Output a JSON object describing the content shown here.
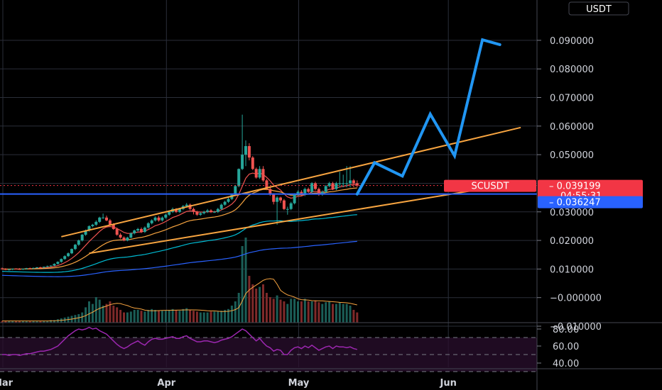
{
  "chart_data": {
    "type": "candlestick",
    "symbol_tag": "SCUSDT",
    "currency_label": "USDT",
    "price_axis": {
      "ticks": [
        "0.080000",
        "0.070000",
        "0.060000",
        "0.050000",
        "0.030000",
        "0.020000",
        "0.010000",
        "−0.000000",
        "−0.010000"
      ],
      "tick_values": [
        0.08,
        0.07,
        0.06,
        0.05,
        0.03,
        0.02,
        0.01,
        0.0,
        -0.01
      ],
      "top_clipped_label": "0.090000",
      "ylim": [
        -0.0165,
        0.0915
      ]
    },
    "rsi_axis": {
      "ticks": [
        "80.00",
        "60.00",
        "40.00"
      ],
      "tick_values": [
        80,
        60,
        40
      ],
      "ylim": [
        35,
        85
      ],
      "band": [
        30,
        70
      ]
    },
    "x_axis": {
      "labels": [
        "Mar",
        "Apr",
        "May",
        "Jun"
      ],
      "label_bar_index": [
        0,
        47,
        85,
        128
      ],
      "total_bars": 140
    },
    "last_price": {
      "label": "0.039199",
      "value": 0.039199,
      "countdown": "04:55:31",
      "color": "#f23645"
    },
    "level_line": {
      "label": "0.036247",
      "value": 0.036247,
      "color": "#2962ff"
    },
    "colors": {
      "up": "#26a69a",
      "down": "#ef5350",
      "channel": "#f7a440",
      "projection": "#2196f3",
      "rsi": "#9c27b0"
    },
    "series": [
      {
        "name": "Open",
        "values": [
          0.0102,
          0.01,
          0.0098,
          0.0099,
          0.0101,
          0.01,
          0.0099,
          0.0101,
          0.0103,
          0.0102,
          0.0104,
          0.0106,
          0.0105,
          0.0108,
          0.011,
          0.0112,
          0.0118,
          0.0125,
          0.0135,
          0.0145,
          0.0155,
          0.017,
          0.0185,
          0.02,
          0.022,
          0.0235,
          0.025,
          0.0255,
          0.0265,
          0.028,
          0.028,
          0.027,
          0.0255,
          0.024,
          0.022,
          0.021,
          0.02,
          0.021,
          0.0225,
          0.0235,
          0.024,
          0.023,
          0.0245,
          0.026,
          0.027,
          0.028,
          0.027,
          0.028,
          0.029,
          0.03,
          0.031,
          0.03,
          0.031,
          0.032,
          0.0325,
          0.031,
          0.03,
          0.029,
          0.0295,
          0.03,
          0.0305,
          0.03,
          0.03,
          0.031,
          0.0325,
          0.0335,
          0.0345,
          0.036,
          0.039,
          0.045,
          0.05,
          0.053,
          0.049,
          0.045,
          0.042,
          0.045,
          0.041,
          0.038,
          0.036,
          0.0335,
          0.035,
          0.034,
          0.031,
          0.031,
          0.033,
          0.036,
          0.037,
          0.036,
          0.038,
          0.037,
          0.04,
          0.038,
          0.036,
          0.037,
          0.039,
          0.04,
          0.038,
          0.04,
          0.04,
          0.04,
          0.04,
          0.041,
          0.04
        ]
      },
      {
        "name": "High",
        "values": [
          0.0105,
          0.0103,
          0.0101,
          0.0102,
          0.0103,
          0.0103,
          0.0102,
          0.0104,
          0.0105,
          0.0105,
          0.0107,
          0.0108,
          0.0108,
          0.0112,
          0.0113,
          0.012,
          0.0127,
          0.0137,
          0.0148,
          0.0158,
          0.0172,
          0.0188,
          0.0203,
          0.0223,
          0.0238,
          0.0253,
          0.0258,
          0.027,
          0.0283,
          0.0294,
          0.0287,
          0.0275,
          0.026,
          0.0245,
          0.0226,
          0.0214,
          0.0213,
          0.0228,
          0.0238,
          0.0244,
          0.0245,
          0.0249,
          0.0264,
          0.0274,
          0.0284,
          0.0286,
          0.0284,
          0.0294,
          0.0304,
          0.0315,
          0.0313,
          0.0314,
          0.0324,
          0.0331,
          0.0329,
          0.0315,
          0.0304,
          0.0299,
          0.0304,
          0.031,
          0.0309,
          0.0304,
          0.0314,
          0.0329,
          0.0339,
          0.035,
          0.0364,
          0.0394,
          0.0452,
          0.064,
          0.055,
          0.054,
          0.0495,
          0.0455,
          0.046,
          0.046,
          0.0415,
          0.0385,
          0.0365,
          0.0355,
          0.0353,
          0.0345,
          0.0318,
          0.0335,
          0.0365,
          0.0375,
          0.0376,
          0.0385,
          0.0385,
          0.0404,
          0.0405,
          0.0385,
          0.0375,
          0.0394,
          0.0405,
          0.0405,
          0.0405,
          0.044,
          0.043,
          0.046,
          0.046,
          0.0415,
          0.041
        ]
      },
      {
        "name": "Low",
        "values": [
          0.0098,
          0.0096,
          0.0095,
          0.0096,
          0.0098,
          0.0097,
          0.0096,
          0.0098,
          0.0101,
          0.01,
          0.0102,
          0.0103,
          0.0103,
          0.0106,
          0.0108,
          0.011,
          0.0115,
          0.0122,
          0.0132,
          0.0142,
          0.0152,
          0.0166,
          0.0181,
          0.0196,
          0.0216,
          0.0231,
          0.0246,
          0.0251,
          0.0261,
          0.0276,
          0.0267,
          0.0252,
          0.0237,
          0.0216,
          0.0206,
          0.0197,
          0.0197,
          0.0207,
          0.0221,
          0.0231,
          0.0226,
          0.0226,
          0.0241,
          0.0256,
          0.0266,
          0.0266,
          0.0266,
          0.0276,
          0.0286,
          0.0296,
          0.0296,
          0.0296,
          0.0306,
          0.0316,
          0.0306,
          0.0291,
          0.0286,
          0.0286,
          0.0291,
          0.0296,
          0.0296,
          0.0296,
          0.0296,
          0.0306,
          0.0321,
          0.0331,
          0.0341,
          0.0356,
          0.0386,
          0.0446,
          0.046,
          0.048,
          0.0446,
          0.0416,
          0.0415,
          0.0405,
          0.0376,
          0.0356,
          0.0326,
          0.0255,
          0.0331,
          0.0306,
          0.029,
          0.0306,
          0.0326,
          0.0356,
          0.0356,
          0.0355,
          0.0366,
          0.0366,
          0.0376,
          0.0356,
          0.0356,
          0.0366,
          0.0386,
          0.0376,
          0.0376,
          0.0386,
          0.0386,
          0.0386,
          0.0386,
          0.0386,
          0.0386
        ]
      },
      {
        "name": "Close",
        "values": [
          0.01,
          0.0098,
          0.0099,
          0.0101,
          0.01,
          0.0099,
          0.0101,
          0.0103,
          0.0102,
          0.0104,
          0.0106,
          0.0105,
          0.0108,
          0.011,
          0.0112,
          0.0118,
          0.0125,
          0.0135,
          0.0145,
          0.0155,
          0.017,
          0.0185,
          0.02,
          0.022,
          0.0235,
          0.025,
          0.0255,
          0.0265,
          0.028,
          0.028,
          0.027,
          0.0255,
          0.024,
          0.022,
          0.021,
          0.02,
          0.021,
          0.0225,
          0.0235,
          0.024,
          0.023,
          0.0245,
          0.026,
          0.027,
          0.028,
          0.027,
          0.028,
          0.029,
          0.03,
          0.031,
          0.03,
          0.031,
          0.032,
          0.0325,
          0.031,
          0.03,
          0.029,
          0.0295,
          0.03,
          0.0305,
          0.03,
          0.03,
          0.031,
          0.0325,
          0.0335,
          0.0345,
          0.036,
          0.039,
          0.045,
          0.05,
          0.053,
          0.049,
          0.045,
          0.042,
          0.045,
          0.041,
          0.038,
          0.036,
          0.0335,
          0.035,
          0.034,
          0.031,
          0.031,
          0.033,
          0.036,
          0.037,
          0.036,
          0.038,
          0.037,
          0.04,
          0.038,
          0.036,
          0.037,
          0.039,
          0.04,
          0.038,
          0.04,
          0.04,
          0.04,
          0.04,
          0.041,
          0.04,
          0.0392
        ]
      },
      {
        "name": "Volume",
        "values": [
          0.02,
          0.02,
          0.02,
          0.02,
          0.02,
          0.02,
          0.02,
          0.02,
          0.02,
          0.02,
          0.02,
          0.02,
          0.02,
          0.02,
          0.03,
          0.03,
          0.04,
          0.05,
          0.06,
          0.07,
          0.08,
          0.09,
          0.1,
          0.12,
          0.18,
          0.25,
          0.22,
          0.3,
          0.27,
          0.2,
          0.22,
          0.25,
          0.2,
          0.18,
          0.15,
          0.12,
          0.12,
          0.13,
          0.15,
          0.15,
          0.14,
          0.13,
          0.15,
          0.16,
          0.15,
          0.14,
          0.14,
          0.14,
          0.15,
          0.16,
          0.15,
          0.14,
          0.16,
          0.17,
          0.15,
          0.14,
          0.13,
          0.12,
          0.12,
          0.12,
          0.13,
          0.13,
          0.13,
          0.14,
          0.15,
          0.16,
          0.2,
          0.25,
          0.35,
          0.9,
          1.0,
          0.55,
          0.45,
          0.4,
          0.42,
          0.45,
          0.35,
          0.3,
          0.28,
          0.32,
          0.27,
          0.25,
          0.22,
          0.28,
          0.28,
          0.25,
          0.25,
          0.28,
          0.25,
          0.25,
          0.26,
          0.24,
          0.22,
          0.24,
          0.25,
          0.22,
          0.22,
          0.24,
          0.22,
          0.22,
          0.2,
          0.15,
          0.12
        ]
      }
    ],
    "rsi": [
      50,
      50,
      49,
      50,
      50,
      49,
      50,
      51,
      51,
      52,
      53,
      54,
      54,
      55,
      56,
      58,
      60,
      64,
      68,
      72,
      75,
      78,
      80,
      79,
      80,
      82,
      80,
      81,
      78,
      76,
      74,
      70,
      66,
      62,
      59,
      57,
      59,
      62,
      64,
      66,
      63,
      61,
      65,
      68,
      69,
      68,
      68,
      69,
      70,
      71,
      69,
      69,
      71,
      72,
      69,
      67,
      65,
      65,
      66,
      66,
      65,
      64,
      65,
      67,
      68,
      69,
      71,
      74,
      77,
      80,
      78,
      74,
      70,
      66,
      69,
      64,
      60,
      58,
      54,
      56,
      55,
      50,
      50,
      55,
      58,
      59,
      57,
      60,
      58,
      61,
      58,
      55,
      57,
      59,
      60,
      57,
      60,
      59,
      59,
      58,
      59,
      57,
      56
    ],
    "channel_upper": {
      "from": [
        17,
        0.0213
      ],
      "to": [
        149,
        0.0595
      ]
    },
    "channel_lower": {
      "from": [
        25,
        0.0155
      ],
      "to": [
        137,
        0.0378
      ]
    },
    "projection_path": [
      [
        102,
        0.0362
      ],
      [
        107,
        0.0472
      ],
      [
        115,
        0.0425
      ],
      [
        123,
        0.0642
      ],
      [
        130,
        0.0496
      ],
      [
        138,
        0.0902
      ],
      [
        143,
        0.0885
      ]
    ]
  }
}
